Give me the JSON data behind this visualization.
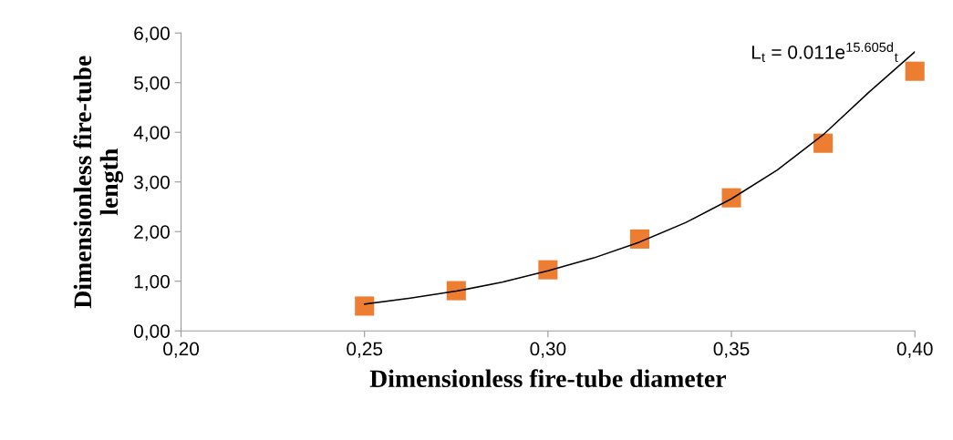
{
  "chart_data": {
    "type": "scatter",
    "xlabel": "Dimensionless fire-tube diameter",
    "ylabel": "Dimensionless fire-tube\nlength",
    "xlim": [
      0.2,
      0.4
    ],
    "ylim": [
      0,
      6
    ],
    "xticks": [
      {
        "value": 0.2,
        "label": "0,20"
      },
      {
        "value": 0.25,
        "label": "0,25"
      },
      {
        "value": 0.3,
        "label": "0,30"
      },
      {
        "value": 0.35,
        "label": "0,35"
      },
      {
        "value": 0.4,
        "label": "0,40"
      }
    ],
    "yticks": [
      {
        "value": 0,
        "label": "0,00"
      },
      {
        "value": 1,
        "label": "1,00"
      },
      {
        "value": 2,
        "label": "2,00"
      },
      {
        "value": 3,
        "label": "3,00"
      },
      {
        "value": 4,
        "label": "4,00"
      },
      {
        "value": 5,
        "label": "5,00"
      },
      {
        "value": 6,
        "label": "6,00"
      }
    ],
    "grid": false,
    "legend": false,
    "marker": "square",
    "series": [
      {
        "color": "#ed7d31",
        "x": [
          0.25,
          0.275,
          0.3,
          0.325,
          0.35,
          0.375,
          0.4
        ],
        "values": [
          0.5,
          0.81,
          1.23,
          1.85,
          2.68,
          3.78,
          5.23
        ]
      },
      {
        "type": "line",
        "color": "#000000",
        "marker": "none",
        "line_style": "solid",
        "x": [
          0.25,
          0.2625,
          0.275,
          0.2875,
          0.3,
          0.3125,
          0.325,
          0.3375,
          0.35,
          0.3625,
          0.375,
          0.3875,
          0.4
        ],
        "values": [
          0.54,
          0.66,
          0.8,
          0.98,
          1.21,
          1.47,
          1.79,
          2.18,
          2.66,
          3.24,
          3.95,
          4.81,
          5.62
        ]
      }
    ],
    "annotations": [
      "L$_{t}$ = 0.011e$^{15.605d}$$_{t}$"
    ]
  }
}
